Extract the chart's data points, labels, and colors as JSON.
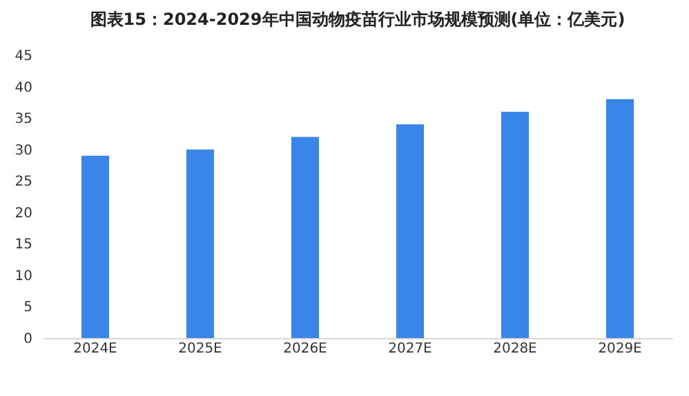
{
  "chart_data": {
    "type": "bar",
    "title": "图表15：2024-2029年中国动物疫苗行业市场规模预测(单位：亿美元)",
    "categories": [
      "2024E",
      "2025E",
      "2026E",
      "2027E",
      "2028E",
      "2029E"
    ],
    "values": [
      29,
      30,
      32,
      34,
      36,
      38
    ],
    "color": "#3a85e8",
    "ylim": [
      0,
      45
    ],
    "yticks": [
      0,
      5,
      10,
      15,
      20,
      25,
      30,
      35,
      40,
      45
    ],
    "grid": false
  }
}
